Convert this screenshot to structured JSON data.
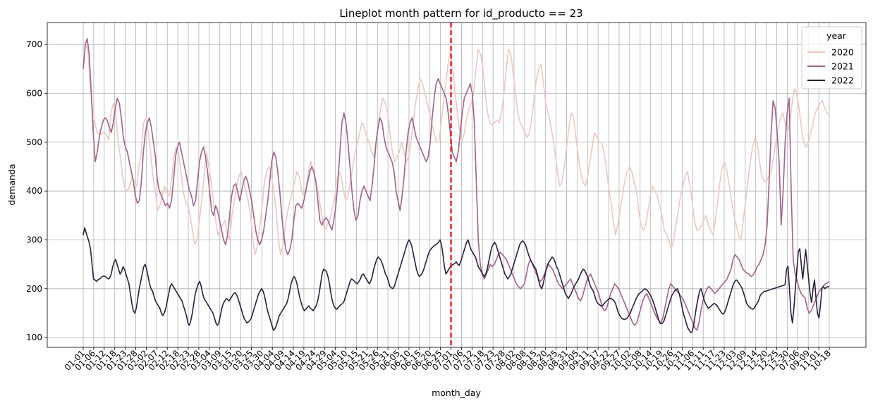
{
  "chart_data": {
    "type": "line",
    "title": "Lineplot month pattern for id_producto == 23",
    "xlabel": "month_day",
    "ylabel": "demanda",
    "ylim": [
      80,
      745
    ],
    "yticks": [
      100,
      200,
      300,
      400,
      500,
      600,
      700
    ],
    "xticks": [
      "01-01",
      "01-06",
      "01-12",
      "01-18",
      "01-23",
      "01-28",
      "02-02",
      "02-07",
      "02-12",
      "02-18",
      "02-23",
      "02-28",
      "03-04",
      "03-09",
      "03-15",
      "03-20",
      "03-25",
      "03-30",
      "04-04",
      "04-09",
      "04-14",
      "04-19",
      "04-24",
      "04-29",
      "05-04",
      "05-10",
      "05-15",
      "05-21",
      "05-26",
      "05-31",
      "06-05",
      "06-10",
      "06-15",
      "06-20",
      "06-25",
      "07-01",
      "07-06",
      "07-12",
      "07-18",
      "07-23",
      "07-28",
      "08-02",
      "08-08",
      "08-15",
      "08-20",
      "08-25",
      "08-31",
      "09-05",
      "09-11",
      "09-17",
      "09-22",
      "09-27",
      "10-02",
      "10-08",
      "10-14",
      "10-19",
      "10-26",
      "10-31",
      "11-06",
      "11-11",
      "11-17",
      "11-23",
      "12-03",
      "12-09",
      "12-14",
      "12-20",
      "12-25",
      "12-30",
      "07-06",
      "09-09",
      "11-01",
      "10-18"
    ],
    "vline": {
      "x": "07-01",
      "color": "#e41a1c"
    },
    "grid": true,
    "legend": {
      "title": "year",
      "placement": "top-right"
    },
    "series": [
      {
        "name": "2020",
        "color": "#ecc9c0",
        "values": [
          650,
          700,
          690,
          620,
          570,
          540,
          520,
          515,
          518,
          520,
          515,
          505,
          560,
          580,
          560,
          500,
          470,
          430,
          405,
          400,
          410,
          430,
          420,
          410,
          450,
          480,
          540,
          550,
          520,
          480,
          430,
          400,
          360,
          370,
          390,
          410,
          395,
          390,
          420,
          470,
          490,
          480,
          440,
          400,
          380,
          370,
          350,
          320,
          290,
          300,
          340,
          380,
          430,
          480,
          450,
          420,
          380,
          340,
          310,
          320,
          330,
          340,
          310,
          300,
          350,
          380,
          410,
          430,
          440,
          420,
          400,
          380,
          350,
          300,
          270,
          290,
          330,
          370,
          420,
          440,
          450,
          430,
          400,
          360,
          300,
          270,
          290,
          330,
          360,
          380,
          400,
          420,
          440,
          430,
          400,
          390,
          410,
          440,
          460,
          440,
          420,
          400,
          370,
          340,
          320,
          330,
          340,
          360,
          380,
          420,
          440,
          430,
          400,
          380,
          390,
          420,
          450,
          480,
          500,
          520,
          540,
          530,
          510,
          500,
          480,
          470,
          500,
          540,
          570,
          590,
          580,
          560,
          520,
          480,
          460,
          470,
          480,
          500,
          480,
          460,
          470,
          500,
          540,
          580,
          610,
          630,
          620,
          600,
          580,
          560,
          540,
          520,
          500,
          500,
          540,
          580,
          620,
          660,
          690,
          650,
          600,
          560,
          520,
          500,
          520,
          550,
          570,
          580,
          600,
          650,
          690,
          680,
          650,
          600,
          560,
          540,
          535,
          540,
          545,
          540,
          560,
          600,
          650,
          690,
          680,
          640,
          600,
          560,
          540,
          530,
          520,
          510,
          520,
          550,
          590,
          630,
          650,
          660,
          620,
          580,
          560,
          540,
          510,
          480,
          440,
          410,
          420,
          450,
          490,
          530,
          560,
          550,
          510,
          470,
          440,
          420,
          410,
          430,
          460,
          490,
          520,
          510,
          500,
          500,
          480,
          450,
          410,
          380,
          340,
          310,
          330,
          360,
          390,
          420,
          440,
          450,
          440,
          420,
          400,
          360,
          330,
          320,
          330,
          360,
          390,
          410,
          400,
          390,
          370,
          350,
          320,
          310,
          300,
          280,
          300,
          330,
          360,
          390,
          410,
          430,
          440,
          410,
          380,
          340,
          320,
          320,
          330,
          340,
          350,
          330,
          320,
          310,
          340,
          380,
          420,
          450,
          460,
          440,
          410,
          380,
          350,
          330,
          310,
          300,
          340,
          380,
          420,
          460,
          490,
          510,
          500,
          460,
          430,
          420,
          420,
          430,
          440,
          470,
          500,
          530,
          550,
          560,
          540,
          520,
          540,
          580,
          610,
          600,
          570,
          530,
          500,
          490,
          500,
          520,
          540,
          560,
          570,
          580,
          585,
          570,
          560,
          555
        ]
      },
      {
        "name": "2021",
        "color": "#a0628a",
        "values": [
          650,
          700,
          712,
          680,
          600,
          520,
          460,
          480,
          510,
          530,
          545,
          550,
          545,
          530,
          520,
          540,
          570,
          590,
          580,
          550,
          510,
          490,
          480,
          460,
          440,
          420,
          390,
          375,
          380,
          420,
          480,
          520,
          540,
          550,
          530,
          500,
          470,
          420,
          400,
          390,
          380,
          370,
          375,
          365,
          380,
          420,
          470,
          490,
          500,
          480,
          460,
          440,
          420,
          400,
          390,
          370,
          380,
          420,
          460,
          480,
          490,
          470,
          440,
          400,
          360,
          350,
          370,
          360,
          340,
          320,
          300,
          290,
          310,
          350,
          390,
          410,
          415,
          400,
          380,
          400,
          420,
          430,
          420,
          400,
          380,
          350,
          320,
          300,
          290,
          300,
          320,
          350,
          380,
          420,
          460,
          480,
          470,
          440,
          400,
          350,
          310,
          280,
          270,
          280,
          300,
          340,
          370,
          375,
          370,
          365,
          380,
          400,
          420,
          440,
          450,
          440,
          420,
          380,
          340,
          330,
          340,
          345,
          340,
          330,
          320,
          340,
          370,
          420,
          480,
          540,
          560,
          540,
          500,
          450,
          400,
          360,
          340,
          350,
          380,
          400,
          410,
          400,
          390,
          380,
          410,
          450,
          500,
          530,
          550,
          540,
          510,
          490,
          480,
          470,
          460,
          440,
          400,
          380,
          360,
          390,
          430,
          480,
          520,
          540,
          550,
          530,
          510,
          500,
          490,
          480,
          470,
          460,
          470,
          500,
          550,
          590,
          620,
          630,
          620,
          610,
          600,
          590,
          560,
          520,
          480,
          470,
          460,
          480,
          520,
          560,
          590,
          600,
          610,
          620,
          600,
          540,
          420,
          300,
          250,
          230,
          220,
          230,
          240,
          250,
          245,
          250,
          260,
          270,
          275,
          270,
          265,
          260,
          250,
          240,
          230,
          220,
          210,
          205,
          200,
          205,
          210,
          230,
          250,
          260,
          250,
          240,
          230,
          220,
          215,
          220,
          230,
          240,
          250,
          245,
          240,
          230,
          220,
          210,
          205,
          200,
          205,
          210,
          215,
          220,
          210,
          200,
          190,
          180,
          175,
          185,
          200,
          215,
          225,
          230,
          220,
          210,
          200,
          190,
          175,
          160,
          155,
          160,
          175,
          190,
          200,
          210,
          205,
          200,
          190,
          180,
          170,
          160,
          150,
          140,
          130,
          125,
          130,
          145,
          160,
          175,
          185,
          190,
          180,
          170,
          160,
          150,
          140,
          135,
          130,
          140,
          160,
          180,
          200,
          210,
          205,
          200,
          195,
          190,
          185,
          180,
          170,
          160,
          150,
          140,
          130,
          120,
          115,
          130,
          155,
          175,
          190,
          200,
          205,
          200,
          195,
          190,
          195,
          200,
          205,
          210,
          215,
          220,
          230,
          240,
          260,
          270,
          265,
          260,
          250,
          240,
          235,
          232,
          230,
          225,
          228,
          235,
          245,
          250,
          260,
          270,
          290,
          330,
          420,
          520,
          585,
          570,
          520,
          460,
          330,
          400,
          500,
          560,
          590,
          400,
          260,
          230,
          215,
          200,
          190,
          185,
          180,
          160,
          150,
          155,
          165,
          175,
          185,
          195,
          200,
          205,
          210,
          212,
          215
        ]
      },
      {
        "name": "2022",
        "color": "#2c1e3d",
        "values": [
          310,
          325,
          315,
          305,
          295,
          280,
          250,
          220,
          218,
          215,
          218,
          220,
          222,
          225,
          226,
          225,
          222,
          220,
          222,
          230,
          245,
          255,
          260,
          250,
          240,
          230,
          235,
          245,
          240,
          230,
          220,
          210,
          190,
          170,
          155,
          150,
          160,
          180,
          200,
          215,
          230,
          245,
          250,
          240,
          225,
          210,
          200,
          195,
          185,
          175,
          170,
          165,
          160,
          150,
          145,
          150,
          160,
          175,
          190,
          205,
          210,
          205,
          200,
          195,
          190,
          185,
          180,
          175,
          165,
          155,
          145,
          130,
          125,
          135,
          150,
          170,
          190,
          200,
          210,
          215,
          205,
          190,
          180,
          175,
          170,
          165,
          160,
          155,
          150,
          140,
          130,
          125,
          130,
          145,
          160,
          170,
          175,
          180,
          178,
          175,
          180,
          185,
          190,
          192,
          188,
          180,
          170,
          160,
          150,
          140,
          135,
          130,
          132,
          135,
          140,
          150,
          160,
          170,
          180,
          190,
          195,
          200,
          195,
          185,
          170,
          155,
          145,
          135,
          125,
          115,
          118,
          125,
          135,
          145,
          150,
          155,
          160,
          165,
          170,
          180,
          195,
          210,
          220,
          225,
          220,
          210,
          195,
          180,
          170,
          160,
          155,
          158,
          162,
          165,
          160,
          158,
          155,
          160,
          165,
          175,
          190,
          210,
          230,
          240,
          238,
          235,
          225,
          210,
          190,
          175,
          165,
          160,
          158,
          162,
          165,
          168,
          170,
          175,
          185,
          195,
          205,
          215,
          220,
          218,
          215,
          212,
          210,
          215,
          220,
          228,
          230,
          225,
          220,
          215,
          210,
          215,
          225,
          240,
          250,
          260,
          265,
          262,
          258,
          250,
          240,
          230,
          225,
          215,
          205,
          202,
          200,
          205,
          215,
          225,
          235,
          245,
          255,
          265,
          275,
          285,
          295,
          300,
          295,
          285,
          270,
          255,
          240,
          230,
          225,
          228,
          232,
          240,
          250,
          260,
          270,
          278,
          282,
          285,
          288,
          290,
          292,
          295,
          300,
          290,
          270,
          245,
          230,
          235,
          240,
          245,
          248,
          250,
          252,
          255,
          250,
          248,
          255,
          265,
          275,
          285,
          295,
          300,
          290,
          280,
          275,
          270,
          265,
          255,
          245,
          240,
          235,
          230,
          225,
          230,
          240,
          255,
          270,
          285,
          290,
          295,
          290,
          280,
          270,
          260,
          250,
          240,
          230,
          225,
          220,
          225,
          230,
          240,
          250,
          260,
          270,
          280,
          290,
          295,
          298,
          295,
          290,
          280,
          270,
          262,
          255,
          250,
          245,
          240,
          230,
          215,
          205,
          200,
          210,
          225,
          240,
          250,
          255,
          260,
          265,
          262,
          255,
          245,
          240,
          230,
          220,
          210,
          200,
          190,
          185,
          180,
          185,
          190,
          198,
          205,
          210,
          215,
          220,
          228,
          235,
          240,
          238,
          232,
          225,
          215,
          205,
          200,
          195,
          185,
          175,
          170,
          168,
          165,
          165,
          168,
          172,
          175,
          178,
          180,
          180,
          178,
          175,
          170,
          160,
          150,
          145,
          140,
          138,
          137,
          138,
          140,
          145,
          150,
          158,
          165,
          172,
          180,
          185,
          190,
          192,
          195,
          198,
          200,
          198,
          195,
          190,
          185,
          178,
          170,
          160,
          150,
          140,
          130,
          128,
          130,
          135,
          145,
          155,
          165,
          175,
          185,
          190,
          195,
          198,
          200,
          192,
          180,
          165,
          150,
          140,
          130,
          120,
          115,
          110,
          112,
          125,
          145,
          165,
          180,
          195,
          200,
          190,
          178,
          170,
          165,
          160,
          162,
          165,
          168,
          170,
          168,
          165,
          160,
          155,
          150,
          148,
          152,
          160,
          170,
          180,
          190,
          200,
          210,
          215,
          218,
          215,
          210,
          205,
          200,
          190,
          180,
          170,
          165,
          162,
          160,
          158,
          160,
          165,
          170,
          175,
          185,
          190,
          192,
          195,
          195,
          196,
          197,
          198,
          199,
          200,
          201,
          202,
          203,
          204,
          205,
          206,
          207,
          208,
          240,
          246,
          200,
          150,
          130,
          160,
          200,
          240,
          275,
          282,
          250,
          220,
          250,
          280,
          250,
          220,
          190,
          172,
          200,
          218,
          180,
          150,
          140,
          165,
          200,
          205,
          200,
          203,
          204,
          204
        ]
      }
    ]
  }
}
